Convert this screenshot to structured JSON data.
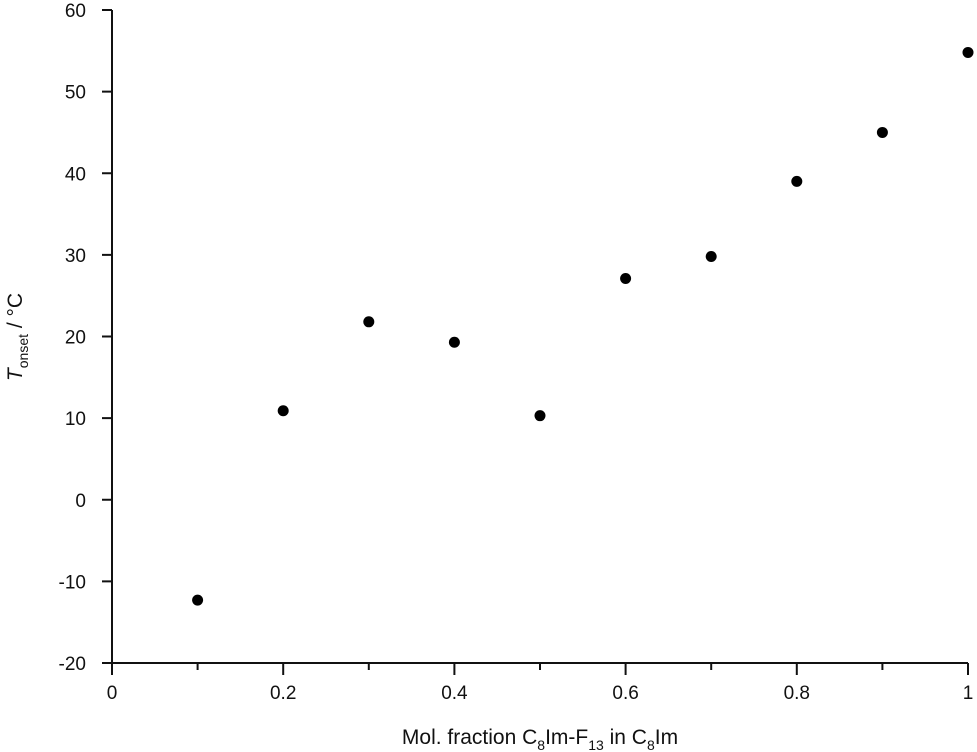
{
  "chart_data": {
    "type": "scatter",
    "xlabel_parts": {
      "prefix": "Mol. fraction C",
      "sub1": "8",
      "mid": "Im-F",
      "sub2": "13",
      "mid2": " in C",
      "sub3": "8",
      "suffix": "Im"
    },
    "ylabel_parts": {
      "main": "T",
      "sub": "onset",
      "suffix": " / °C"
    },
    "xlim": [
      0,
      1
    ],
    "ylim": [
      -20,
      60
    ],
    "x_ticks": [
      {
        "value": 0,
        "label": "0"
      },
      {
        "value": 0.2,
        "label": "0.2"
      },
      {
        "value": 0.4,
        "label": "0.4"
      },
      {
        "value": 0.6,
        "label": "0.6"
      },
      {
        "value": 0.8,
        "label": "0.8"
      },
      {
        "value": 1,
        "label": "1"
      }
    ],
    "x_minor_ticks": [
      0.1,
      0.3,
      0.5,
      0.7,
      0.9
    ],
    "y_ticks": [
      {
        "value": -20,
        "label": "-20"
      },
      {
        "value": -10,
        "label": "-10"
      },
      {
        "value": 0,
        "label": "0"
      },
      {
        "value": 10,
        "label": "10"
      },
      {
        "value": 20,
        "label": "20"
      },
      {
        "value": 30,
        "label": "30"
      },
      {
        "value": 40,
        "label": "40"
      },
      {
        "value": 50,
        "label": "50"
      },
      {
        "value": 60,
        "label": "60"
      }
    ],
    "grid": false,
    "points": [
      {
        "x": 0.1,
        "y": -12.3
      },
      {
        "x": 0.2,
        "y": 10.9
      },
      {
        "x": 0.3,
        "y": 21.8
      },
      {
        "x": 0.4,
        "y": 19.3
      },
      {
        "x": 0.5,
        "y": 10.3
      },
      {
        "x": 0.6,
        "y": 27.1
      },
      {
        "x": 0.7,
        "y": 29.8
      },
      {
        "x": 0.8,
        "y": 39.0
      },
      {
        "x": 0.9,
        "y": 45.0
      },
      {
        "x": 1.0,
        "y": 54.8
      }
    ],
    "marker_color": "#000000"
  }
}
